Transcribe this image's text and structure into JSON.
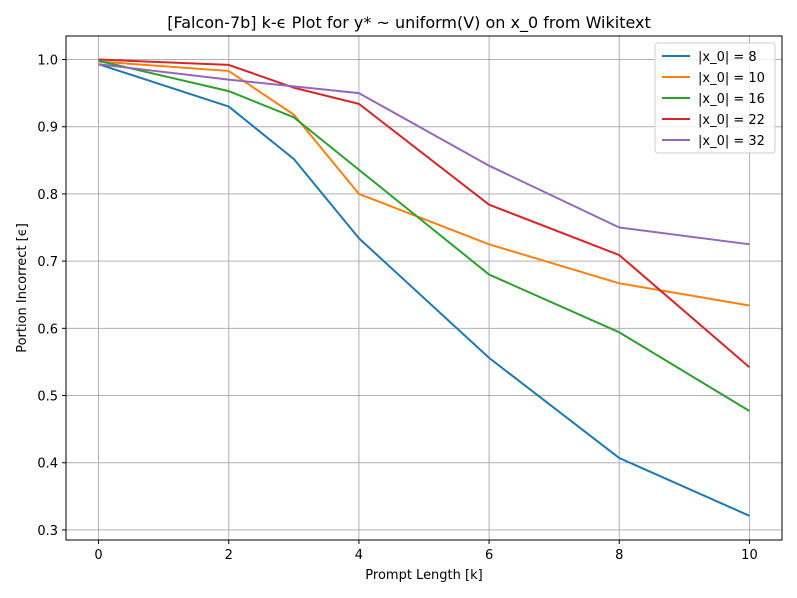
{
  "chart_data": {
    "type": "line",
    "title": "[Falcon-7b] k-ϵ Plot for y* ~ uniform(V) on x_0 from Wikitext",
    "xlabel": "Prompt Length [k]",
    "ylabel": "Portion Incorrect [ϵ]",
    "xlim": [
      -0.5,
      10.5
    ],
    "ylim": [
      0.285,
      1.035
    ],
    "xticks": [
      0,
      2,
      4,
      6,
      8,
      10
    ],
    "yticks": [
      0.3,
      0.4,
      0.5,
      0.6,
      0.7,
      0.8,
      0.9,
      1.0
    ],
    "grid": true,
    "legend_position": "top-right",
    "x": [
      0,
      2,
      3,
      4,
      6,
      8,
      10
    ],
    "series": [
      {
        "name": "|x_0| = 8",
        "color": "#1f77b4",
        "values": [
          0.993,
          0.93,
          0.852,
          0.734,
          0.556,
          0.407,
          0.321
        ]
      },
      {
        "name": "|x_0| = 10",
        "color": "#ff7f0e",
        "values": [
          0.997,
          0.983,
          0.918,
          0.8,
          0.725,
          0.667,
          0.634
        ]
      },
      {
        "name": "|x_0| = 16",
        "color": "#2ca02c",
        "values": [
          0.998,
          0.953,
          0.914,
          0.836,
          0.68,
          0.594,
          0.477
        ]
      },
      {
        "name": "|x_0| = 22",
        "color": "#d62728",
        "values": [
          1.0,
          0.992,
          0.958,
          0.934,
          0.784,
          0.709,
          0.542
        ]
      },
      {
        "name": "|x_0| = 32",
        "color": "#9467bd",
        "values": [
          0.993,
          0.97,
          0.96,
          0.95,
          0.842,
          0.75,
          0.725
        ]
      }
    ]
  }
}
